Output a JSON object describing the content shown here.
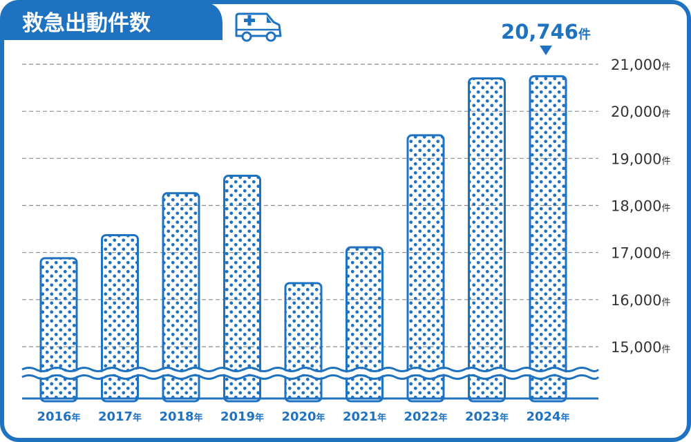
{
  "header": {
    "title": "救急出動件数",
    "icon": "ambulance-icon"
  },
  "colors": {
    "primary": "#1f72c0",
    "grid": "#8a8a8a",
    "text": "#333333",
    "background": "#ffffff"
  },
  "chart_data": {
    "type": "bar",
    "title": "救急出動件数",
    "categories": [
      "2016年",
      "2017年",
      "2018年",
      "2019年",
      "2020年",
      "2021年",
      "2022年",
      "2023年",
      "2024年"
    ],
    "values": [
      16880,
      17370,
      18260,
      18630,
      16350,
      17110,
      19490,
      20700,
      20746
    ],
    "ylim": [
      14700,
      21000
    ],
    "y_ticks": [
      15000,
      16000,
      17000,
      18000,
      19000,
      20000,
      21000
    ],
    "y_tick_labels": [
      "15,000件",
      "16,000件",
      "17,000件",
      "18,000件",
      "19,000件",
      "20,000件",
      "21,000件"
    ],
    "grid": true,
    "axis_break": true,
    "highlight": {
      "category": "2024年",
      "number": "20,746",
      "unit": "件"
    }
  }
}
